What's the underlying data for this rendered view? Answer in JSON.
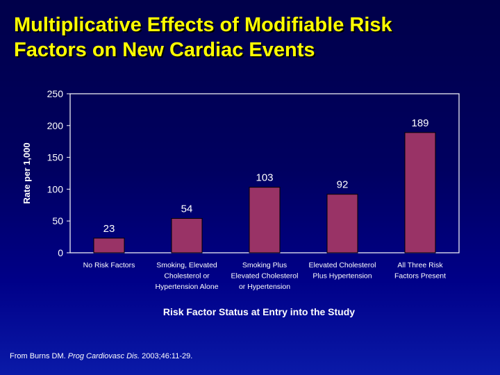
{
  "title_lines": [
    "Multiplicative Effects of Modifiable Risk",
    "Factors on New Cardiac Events"
  ],
  "source": {
    "prefix": "From Burns DM. ",
    "journal": "Prog Cardiovasc Dis.",
    "suffix": " 2003;46:11-29."
  },
  "colors": {
    "title": "#ffff00",
    "bar": "#993366",
    "text": "#ffffff"
  },
  "chart_data": {
    "type": "bar",
    "categories": [
      [
        "No Risk Factors"
      ],
      [
        "Smoking, Elevated",
        "Cholesterol or",
        "Hypertension Alone"
      ],
      [
        "Smoking Plus",
        "Elevated Cholesterol",
        "or Hypertension"
      ],
      [
        "Elevated Cholesterol",
        "Plus Hypertension"
      ],
      [
        "All Three Risk",
        "Factors Present"
      ]
    ],
    "values": [
      23,
      54,
      103,
      92,
      189
    ],
    "data_labels": [
      "23",
      "54",
      "103",
      "92",
      "189"
    ],
    "xlabel": "Risk Factor Status at Entry into the Study",
    "ylabel": "Rate per 1,000",
    "ylim": [
      0,
      250
    ],
    "yticks": [
      0,
      50,
      100,
      150,
      200,
      250
    ],
    "grid": false,
    "legend": "none"
  }
}
